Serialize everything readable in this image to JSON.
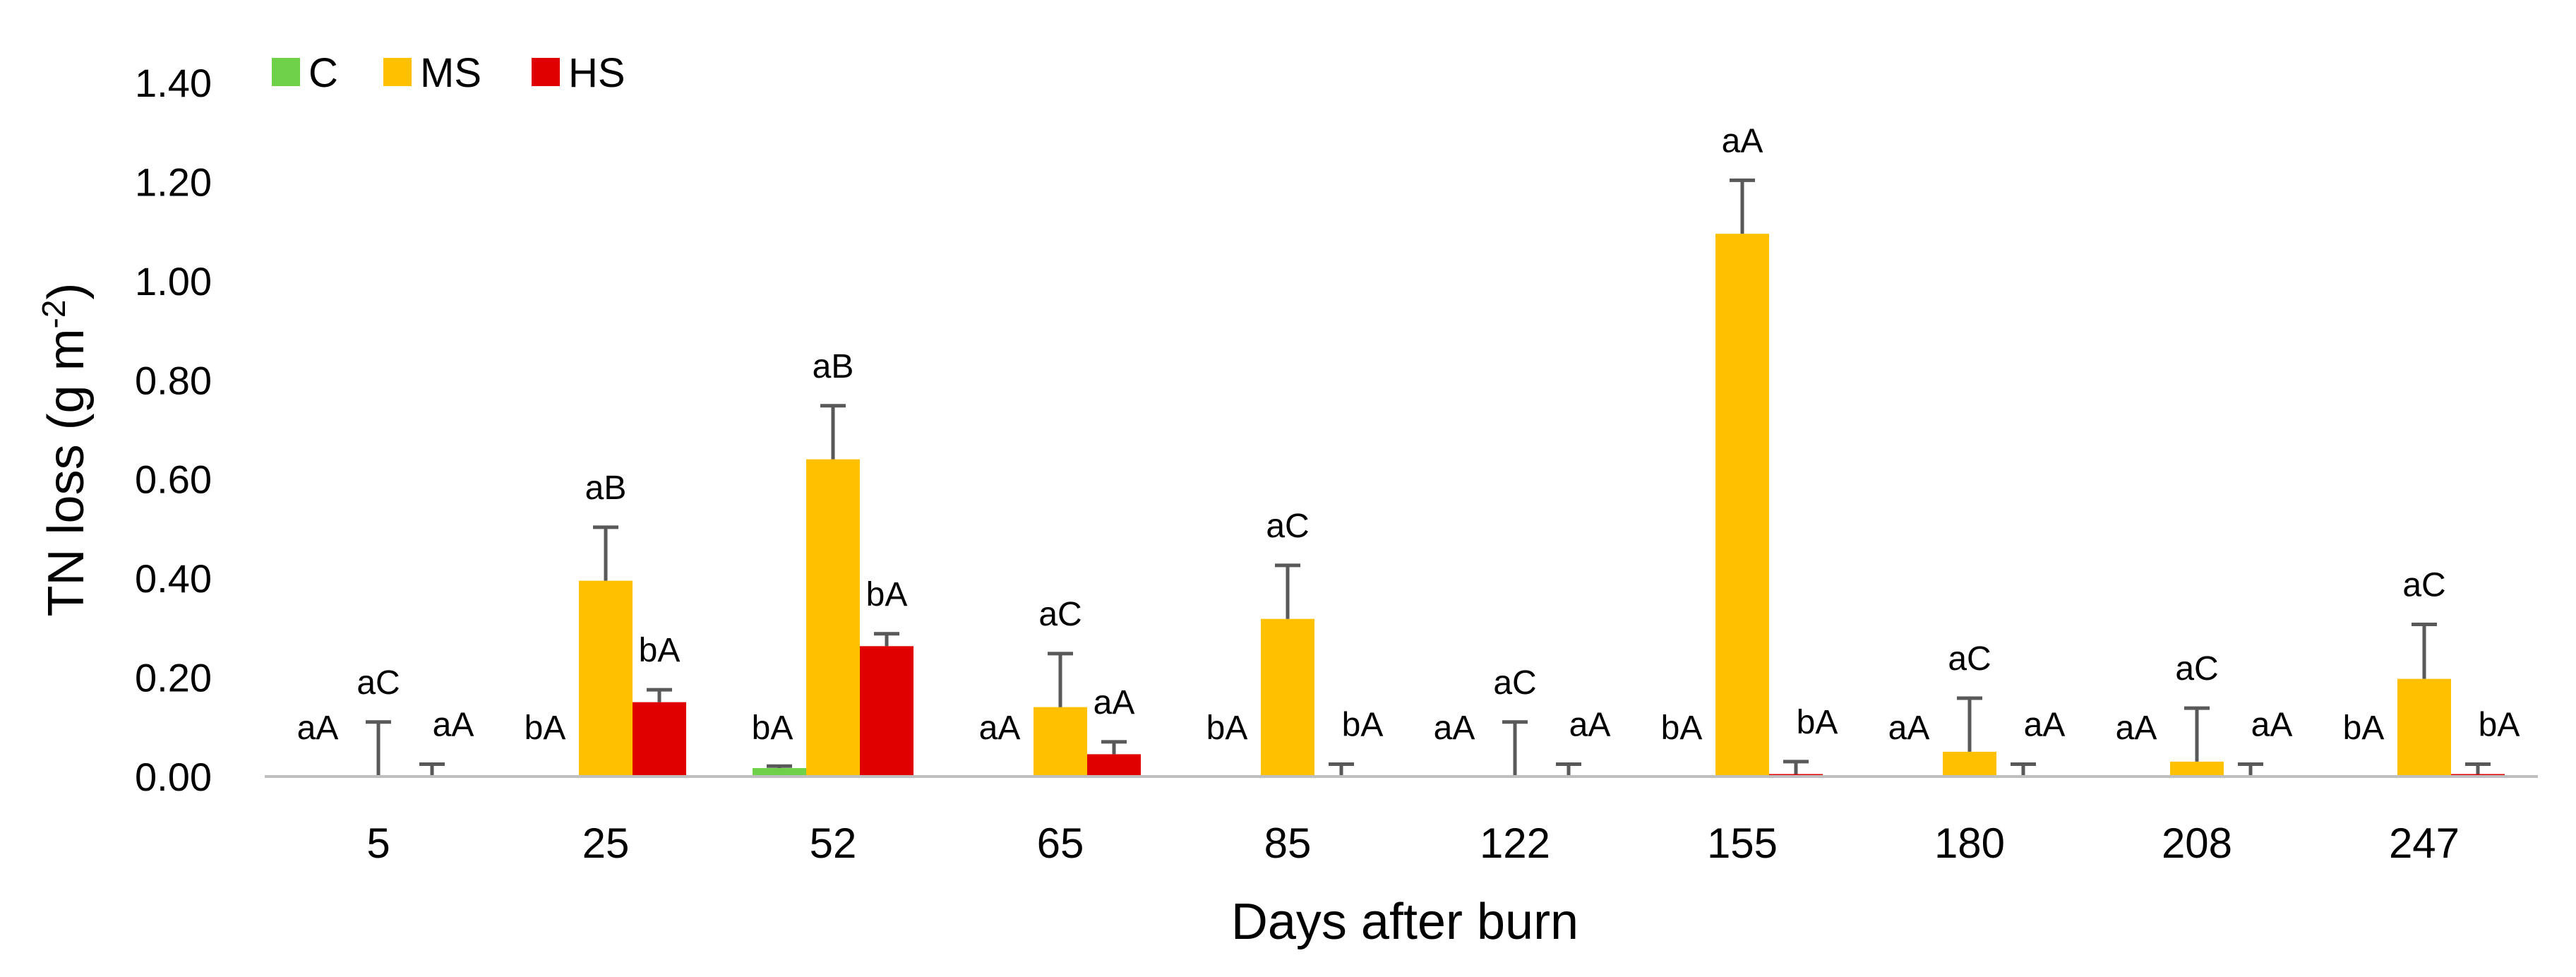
{
  "chart_data": {
    "type": "bar",
    "title": "",
    "xlabel": "Days after burn",
    "ylabel": "TN loss (g m-2)",
    "ylabel_base": "TN loss (g m",
    "ylabel_sup": "-2",
    "ylabel_close": ")",
    "ylim": [
      0,
      1.4
    ],
    "yticks": [
      "0.00",
      "0.20",
      "0.40",
      "0.60",
      "0.80",
      "1.00",
      "1.20",
      "1.40"
    ],
    "categories": [
      "5",
      "25",
      "52",
      "65",
      "85",
      "122",
      "155",
      "180",
      "208",
      "247"
    ],
    "legend_position": "top-left",
    "series": [
      {
        "name": "C",
        "color": "#6fd04a",
        "values": [
          0.0,
          0.0,
          0.017,
          0.0,
          0.0,
          0.0,
          0.0,
          0.0,
          0.0,
          0.0
        ],
        "errors": [
          0,
          0,
          0.004,
          0,
          0,
          0,
          0,
          0,
          0,
          0
        ],
        "labels": [
          "aA",
          "bA",
          "bA",
          "aA",
          "bA",
          "aA",
          "bA",
          "aA",
          "aA",
          "bA"
        ]
      },
      {
        "name": "MS",
        "color": "#ffc000",
        "values": [
          0.0,
          0.395,
          0.64,
          0.14,
          0.318,
          0.0,
          1.095,
          0.05,
          0.03,
          0.197
        ],
        "errors": [
          0.11,
          0.108,
          0.108,
          0.108,
          0.108,
          0.11,
          0.108,
          0.108,
          0.108,
          0.11
        ],
        "labels": [
          "aC",
          "aB",
          "aB",
          "aC",
          "aC",
          "aC",
          "aA",
          "aC",
          "aC",
          "aC"
        ]
      },
      {
        "name": "HS",
        "color": "#e00000",
        "values": [
          0.0,
          0.15,
          0.263,
          0.045,
          0.0,
          0.0,
          0.005,
          0.0,
          0.0,
          0.005
        ],
        "errors": [
          0.025,
          0.025,
          0.025,
          0.025,
          0.025,
          0.025,
          0.025,
          0.025,
          0.025,
          0.02
        ],
        "labels": [
          "aA",
          "bA",
          "bA",
          "aA",
          "bA",
          "aA",
          "bA",
          "aA",
          "aA",
          "bA"
        ]
      }
    ]
  }
}
